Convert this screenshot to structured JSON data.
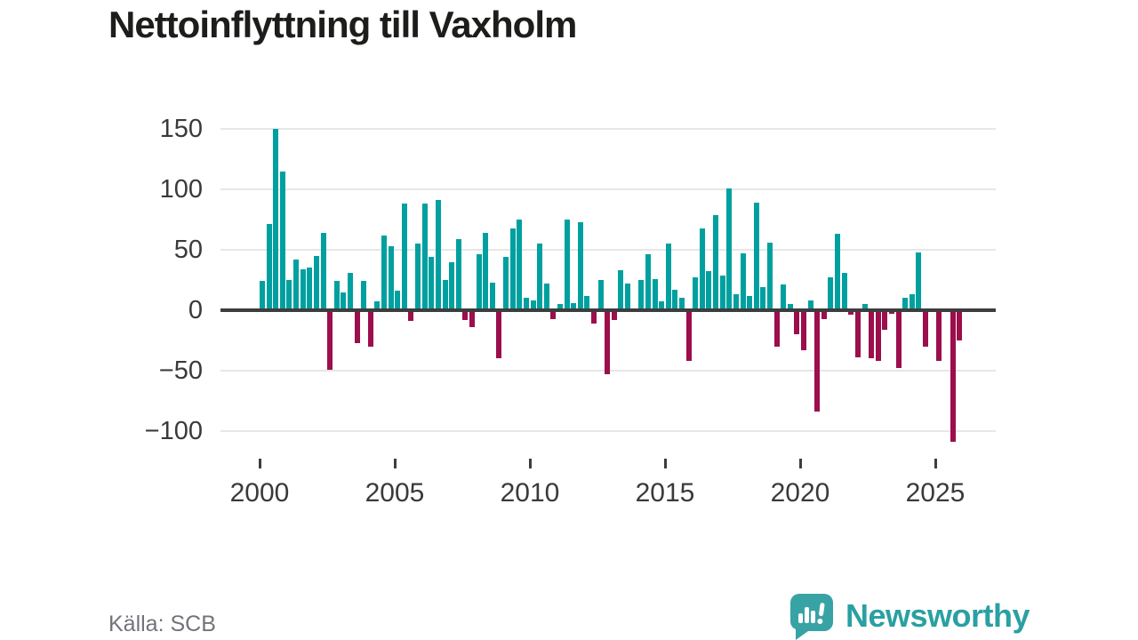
{
  "title": "Nettoinflyttning till Vaxholm",
  "source": "Källa: SCB",
  "brand": {
    "name": "Newsworthy",
    "icon": "speech-bubble-bar-chart-icon"
  },
  "colors": {
    "positive_bar": "#00a0a0",
    "negative_bar": "#9c0e4c",
    "axis": "#3d3d3d",
    "grid": "#e7e7e7",
    "tick_label": "#3a3a3a",
    "title_text": "#1d1d1b",
    "source_text": "#73737b",
    "brand_teal": "#2aa0a2"
  },
  "chart_data": {
    "type": "bar",
    "title": "Nettoinflyttning till Vaxholm",
    "x_unit": "quarter",
    "start_year": 2000,
    "periods_per_year": 4,
    "values": [
      24,
      71,
      150,
      115,
      25,
      42,
      34,
      35,
      45,
      64,
      -49,
      24,
      15,
      31,
      -27,
      24,
      -30,
      7,
      62,
      53,
      16,
      88,
      -9,
      55,
      88,
      44,
      91,
      25,
      40,
      59,
      -8,
      -14,
      46,
      64,
      23,
      -40,
      44,
      68,
      75,
      10,
      8,
      55,
      22,
      -7,
      5,
      75,
      6,
      73,
      12,
      -11,
      25,
      -53,
      -8,
      33,
      22,
      0,
      25,
      46,
      26,
      7,
      55,
      17,
      10,
      -42,
      27,
      68,
      32,
      79,
      29,
      101,
      13,
      47,
      12,
      89,
      19,
      56,
      -30,
      21,
      5,
      -20,
      -33,
      8,
      -84,
      -7,
      27,
      63,
      31,
      -4,
      -39,
      5,
      -40,
      -42,
      -16,
      -3,
      -48,
      10,
      13,
      48,
      -30,
      0,
      -42,
      0,
      -109,
      -25
    ],
    "y_ticks": [
      150,
      100,
      50,
      0,
      -50,
      -100
    ],
    "x_ticks": [
      2000,
      2005,
      2010,
      2015,
      2020,
      2025
    ],
    "ylim": [
      -115,
      160
    ],
    "grid": true,
    "legend": false
  }
}
